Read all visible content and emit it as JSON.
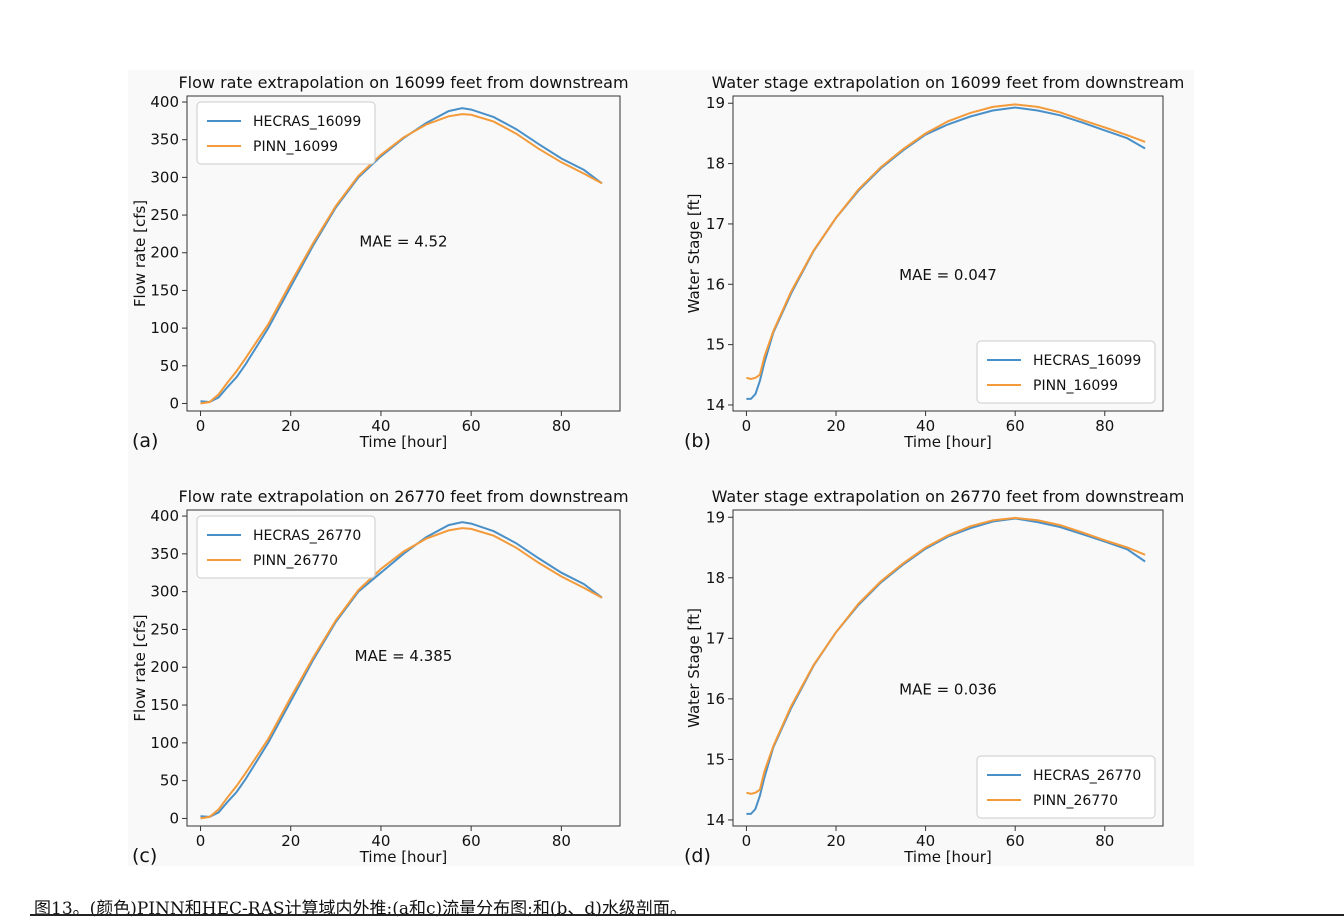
{
  "caption": "图13。(颜色)PINN和HEC-RAS计算域内外推:(a和c)流量分布图;和(b、d)水级剖面。",
  "colors": {
    "hecras": "#4a90c8",
    "pinn": "#f39a3a",
    "panel_bg": "#f9f9f9"
  },
  "chart_data": [
    {
      "id": "a",
      "type": "line",
      "label": "(a)",
      "title": "Flow rate extrapolation on 16099 feet from downstream",
      "xlabel": "Time [hour]",
      "ylabel": "Flow rate [cfs]",
      "xlim": [
        -3,
        93
      ],
      "ylim": [
        -10,
        408
      ],
      "xticks": [
        0,
        20,
        40,
        60,
        80
      ],
      "yticks": [
        0,
        50,
        100,
        150,
        200,
        250,
        300,
        350,
        400
      ],
      "annotation": {
        "text": "MAE = 4.52",
        "x": 45,
        "y": 208
      },
      "legend": "top-left",
      "series": [
        {
          "name": "HECRAS_16099",
          "color": "hecras",
          "x": [
            0,
            2,
            4,
            6,
            8,
            10,
            15,
            20,
            25,
            30,
            35,
            40,
            45,
            50,
            55,
            58,
            60,
            65,
            70,
            75,
            80,
            85,
            89
          ],
          "y": [
            3,
            2,
            8,
            22,
            35,
            52,
            100,
            155,
            210,
            260,
            300,
            328,
            352,
            372,
            388,
            392,
            390,
            380,
            364,
            344,
            325,
            310,
            292
          ]
        },
        {
          "name": "PINN_16099",
          "color": "pinn",
          "x": [
            0,
            2,
            4,
            6,
            8,
            10,
            15,
            20,
            25,
            30,
            35,
            40,
            45,
            50,
            55,
            58,
            60,
            65,
            70,
            75,
            80,
            85,
            89
          ],
          "y": [
            0,
            2,
            12,
            28,
            43,
            60,
            105,
            160,
            213,
            262,
            302,
            330,
            353,
            370,
            381,
            384,
            383,
            374,
            358,
            338,
            320,
            305,
            292
          ]
        }
      ]
    },
    {
      "id": "b",
      "type": "line",
      "label": "(b)",
      "title": "Water stage extrapolation on 16099 feet from downstream",
      "xlabel": "Time [hour]",
      "ylabel": "Water Stage [ft]",
      "xlim": [
        -3,
        93
      ],
      "ylim": [
        13.9,
        19.12
      ],
      "xticks": [
        0,
        20,
        40,
        60,
        80
      ],
      "yticks": [
        14,
        15,
        16,
        17,
        18,
        19
      ],
      "annotation": {
        "text": "MAE = 0.047",
        "x": 45,
        "y": 16.07
      },
      "legend": "bottom-right",
      "series": [
        {
          "name": "HECRAS_16099",
          "color": "hecras",
          "x": [
            0,
            1,
            2,
            3,
            4,
            6,
            10,
            15,
            20,
            25,
            30,
            35,
            40,
            45,
            50,
            55,
            60,
            65,
            70,
            75,
            80,
            85,
            89
          ],
          "y": [
            14.1,
            14.1,
            14.18,
            14.4,
            14.7,
            15.2,
            15.85,
            16.55,
            17.1,
            17.55,
            17.92,
            18.22,
            18.48,
            18.65,
            18.78,
            18.88,
            18.93,
            18.88,
            18.8,
            18.68,
            18.55,
            18.42,
            18.25
          ]
        },
        {
          "name": "PINN_16099",
          "color": "pinn",
          "x": [
            0,
            1,
            2,
            3,
            4,
            6,
            10,
            15,
            20,
            25,
            30,
            35,
            40,
            45,
            50,
            55,
            60,
            65,
            70,
            75,
            80,
            85,
            89
          ],
          "y": [
            14.45,
            14.43,
            14.45,
            14.5,
            14.8,
            15.22,
            15.88,
            16.56,
            17.1,
            17.57,
            17.94,
            18.24,
            18.5,
            18.7,
            18.84,
            18.94,
            18.98,
            18.94,
            18.85,
            18.72,
            18.6,
            18.47,
            18.36
          ]
        }
      ]
    },
    {
      "id": "c",
      "type": "line",
      "label": "(c)",
      "title": "Flow rate extrapolation on 26770 feet from downstream",
      "xlabel": "Time [hour]",
      "ylabel": "Flow rate [cfs]",
      "xlim": [
        -3,
        93
      ],
      "ylim": [
        -10,
        408
      ],
      "xticks": [
        0,
        20,
        40,
        60,
        80
      ],
      "yticks": [
        0,
        50,
        100,
        150,
        200,
        250,
        300,
        350,
        400
      ],
      "annotation": {
        "text": "MAE = 4.385",
        "x": 45,
        "y": 208
      },
      "legend": "top-left",
      "series": [
        {
          "name": "HECRAS_26770",
          "color": "hecras",
          "x": [
            0,
            2,
            4,
            6,
            8,
            10,
            15,
            20,
            25,
            30,
            35,
            40,
            45,
            50,
            55,
            58,
            60,
            65,
            70,
            75,
            80,
            85,
            89
          ],
          "y": [
            3,
            2,
            8,
            22,
            35,
            52,
            100,
            155,
            210,
            260,
            300,
            325,
            350,
            372,
            388,
            392,
            390,
            380,
            364,
            344,
            325,
            310,
            292
          ]
        },
        {
          "name": "PINN_26770",
          "color": "pinn",
          "x": [
            0,
            2,
            4,
            6,
            8,
            10,
            15,
            20,
            25,
            30,
            35,
            40,
            45,
            50,
            55,
            58,
            60,
            65,
            70,
            75,
            80,
            85,
            89
          ],
          "y": [
            0,
            2,
            12,
            28,
            43,
            60,
            105,
            160,
            213,
            262,
            302,
            330,
            353,
            370,
            381,
            384,
            383,
            374,
            358,
            338,
            320,
            305,
            292
          ]
        }
      ]
    },
    {
      "id": "d",
      "type": "line",
      "label": "(d)",
      "title": "Water stage extrapolation on 26770 feet from downstream",
      "xlabel": "Time [hour]",
      "ylabel": "Water Stage [ft]",
      "xlim": [
        -3,
        93
      ],
      "ylim": [
        13.9,
        19.12
      ],
      "xticks": [
        0,
        20,
        40,
        60,
        80
      ],
      "yticks": [
        14,
        15,
        16,
        17,
        18,
        19
      ],
      "annotation": {
        "text": "MAE = 0.036",
        "x": 45,
        "y": 16.07
      },
      "legend": "bottom-right",
      "series": [
        {
          "name": "HECRAS_26770",
          "color": "hecras",
          "x": [
            0,
            1,
            2,
            3,
            4,
            6,
            10,
            15,
            20,
            25,
            30,
            35,
            40,
            45,
            50,
            55,
            60,
            65,
            70,
            75,
            80,
            85,
            89
          ],
          "y": [
            14.1,
            14.1,
            14.18,
            14.4,
            14.7,
            15.2,
            15.85,
            16.55,
            17.1,
            17.55,
            17.92,
            18.22,
            18.48,
            18.68,
            18.82,
            18.93,
            18.98,
            18.92,
            18.84,
            18.72,
            18.6,
            18.47,
            18.27
          ]
        },
        {
          "name": "PINN_26770",
          "color": "pinn",
          "x": [
            0,
            1,
            2,
            3,
            4,
            6,
            10,
            15,
            20,
            25,
            30,
            35,
            40,
            45,
            50,
            55,
            60,
            65,
            70,
            75,
            80,
            85,
            89
          ],
          "y": [
            14.45,
            14.43,
            14.45,
            14.5,
            14.8,
            15.22,
            15.88,
            16.56,
            17.1,
            17.57,
            17.94,
            18.24,
            18.5,
            18.7,
            18.85,
            18.95,
            18.99,
            18.95,
            18.87,
            18.75,
            18.62,
            18.5,
            18.38
          ]
        }
      ]
    }
  ]
}
